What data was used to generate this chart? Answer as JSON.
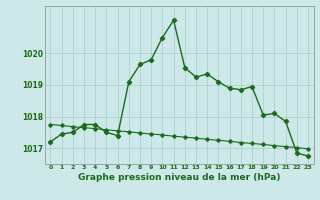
{
  "title": "Graphe pression niveau de la mer (hPa)",
  "bg_color": "#cce8e8",
  "line_color": "#1a6b1a",
  "grid_color": "#aacccc",
  "hours": [
    0,
    1,
    2,
    3,
    4,
    5,
    6,
    7,
    8,
    9,
    10,
    11,
    12,
    13,
    14,
    15,
    16,
    17,
    18,
    19,
    20,
    21,
    22,
    23
  ],
  "pressure": [
    1017.2,
    1017.45,
    1017.5,
    1017.75,
    1017.75,
    1017.5,
    1017.4,
    1019.1,
    1019.65,
    1019.8,
    1020.5,
    1021.05,
    1019.55,
    1019.25,
    1019.35,
    1019.1,
    1018.9,
    1018.85,
    1018.95,
    1018.05,
    1018.1,
    1017.85,
    1016.85,
    1016.75
  ],
  "trend": [
    1017.75,
    1017.72,
    1017.68,
    1017.65,
    1017.62,
    1017.58,
    1017.55,
    1017.52,
    1017.48,
    1017.45,
    1017.42,
    1017.38,
    1017.35,
    1017.32,
    1017.28,
    1017.25,
    1017.22,
    1017.18,
    1017.15,
    1017.12,
    1017.08,
    1017.05,
    1017.02,
    1016.98
  ],
  "ylim": [
    1016.5,
    1021.5
  ],
  "yticks": [
    1017,
    1018,
    1019,
    1020
  ],
  "title_fontsize": 6.5
}
